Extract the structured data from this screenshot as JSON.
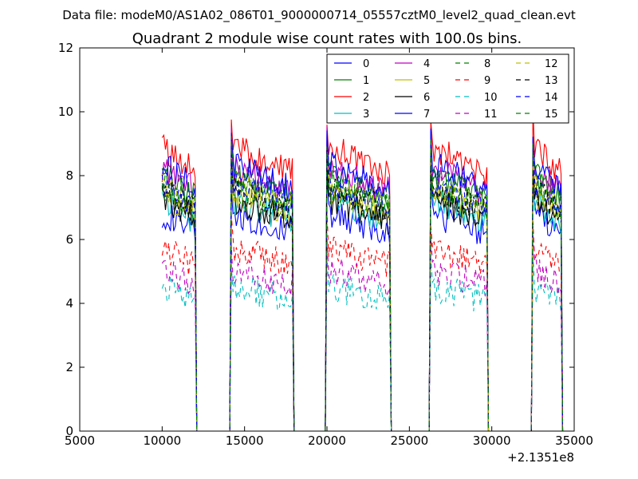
{
  "chart_data": {
    "type": "line",
    "suptitle": "Data file: modeM0/AS1A02_086T01_9000000714_05557cztM0_level2_quad_clean.evt",
    "title": "Quadrant 2 module wise count rates with 100.0s bins.",
    "xlabel": "",
    "ylabel": "",
    "x_offset_label": "+2.1351e8",
    "xlim": [
      5000,
      35000
    ],
    "ylim": [
      0,
      12
    ],
    "xticks": [
      5000,
      10000,
      15000,
      20000,
      25000,
      30000,
      35000
    ],
    "yticks": [
      0,
      2,
      4,
      6,
      8,
      10,
      12
    ],
    "grid": false,
    "legend_position": "top-right",
    "legend_columns": 4,
    "bin_seconds": 100,
    "segments": [
      {
        "start": 10000,
        "end": 12000,
        "drop_end": 12100
      },
      {
        "start": 14200,
        "end": 17900,
        "drop_end": 18000
      },
      {
        "start": 20000,
        "end": 23800,
        "drop_end": 23900
      },
      {
        "start": 26300,
        "end": 29700,
        "drop_end": 29800
      },
      {
        "start": 32500,
        "end": 34200,
        "drop_end": 34300
      }
    ],
    "series": [
      {
        "name": "0",
        "color": "#0000ff",
        "dash": "solid",
        "base_level": 6.2
      },
      {
        "name": "1",
        "color": "#008000",
        "dash": "solid",
        "base_level": 7.3
      },
      {
        "name": "2",
        "color": "#ff0000",
        "dash": "solid",
        "base_level": 8.1
      },
      {
        "name": "3",
        "color": "#00bfbf",
        "dash": "solid",
        "base_level": 6.6
      },
      {
        "name": "4",
        "color": "#bf00bf",
        "dash": "solid",
        "base_level": 7.5
      },
      {
        "name": "5",
        "color": "#bfbf00",
        "dash": "solid",
        "base_level": 6.8
      },
      {
        "name": "6",
        "color": "#000000",
        "dash": "solid",
        "base_level": 6.6
      },
      {
        "name": "7",
        "color": "#0000ff",
        "dash": "solid",
        "base_level": 7.6
      },
      {
        "name": "8",
        "color": "#008000",
        "dash": "dashed",
        "base_level": 6.9
      },
      {
        "name": "9",
        "color": "#ff0000",
        "dash": "dashed",
        "base_level": 5.2
      },
      {
        "name": "10",
        "color": "#00bfbf",
        "dash": "dashed",
        "base_level": 4.1
      },
      {
        "name": "11",
        "color": "#bf00bf",
        "dash": "dashed",
        "base_level": 4.6
      },
      {
        "name": "12",
        "color": "#bfbf00",
        "dash": "dashed",
        "base_level": 7.0
      },
      {
        "name": "13",
        "color": "#000000",
        "dash": "dashed",
        "base_level": 6.9
      },
      {
        "name": "14",
        "color": "#0000ff",
        "dash": "dashed",
        "base_level": 7.1
      },
      {
        "name": "15",
        "color": "#008000",
        "dash": "dashed",
        "base_level": 7.2
      }
    ]
  }
}
